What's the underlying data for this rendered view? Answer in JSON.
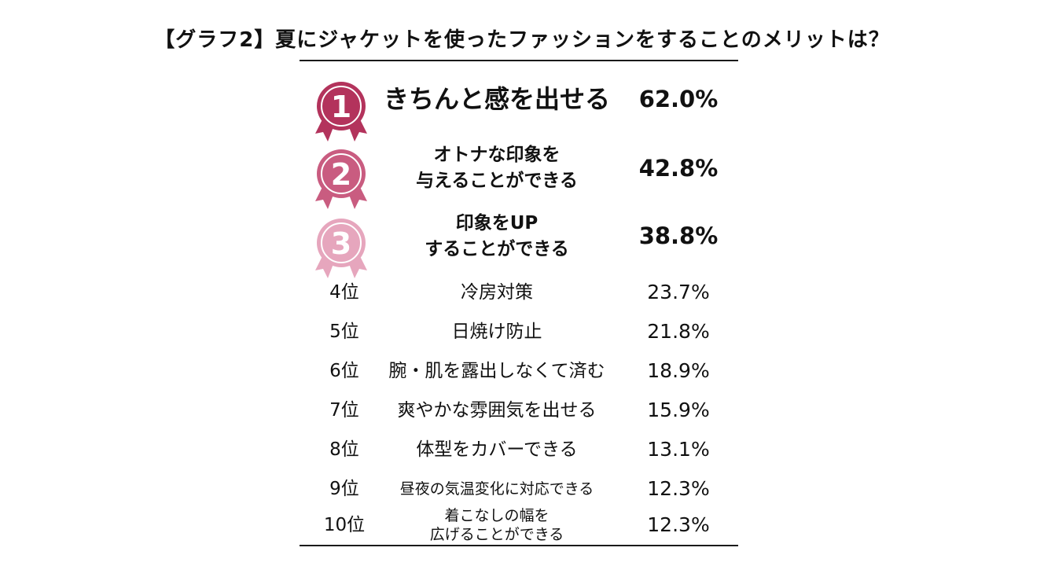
{
  "title": "【グラフ2】夏にジャケットを使ったファッションをすることのメリットは？",
  "colors": {
    "rank1": "#b3335c",
    "rank2": "#c95c80",
    "rank3": "#e6a6bd",
    "rule": "#1a1a1a"
  },
  "chart_data": {
    "type": "table",
    "title": "【グラフ2】夏にジャケットを使ったファッションをすることのメリットは？",
    "columns": [
      "rank",
      "item",
      "percent"
    ],
    "rows": [
      {
        "rank": "1",
        "item_lines": [
          "きちんと感を出せる"
        ],
        "value": "62.0%"
      },
      {
        "rank": "2",
        "item_lines": [
          "オトナな印象を",
          "与えることができる"
        ],
        "value": "42.8%"
      },
      {
        "rank": "3",
        "item_lines": [
          "印象をUP",
          "することができる"
        ],
        "value": "38.8%"
      },
      {
        "rank": "4位",
        "item_lines": [
          "冷房対策"
        ],
        "value": "23.7%"
      },
      {
        "rank": "5位",
        "item_lines": [
          "日焼け防止"
        ],
        "value": "21.8%"
      },
      {
        "rank": "6位",
        "item_lines": [
          "腕・肌を露出しなくて済む"
        ],
        "value": "18.9%"
      },
      {
        "rank": "7位",
        "item_lines": [
          "爽やかな雰囲気を出せる"
        ],
        "value": "15.9%"
      },
      {
        "rank": "8位",
        "item_lines": [
          "体型をカバーできる"
        ],
        "value": "13.1%"
      },
      {
        "rank": "9位",
        "item_lines": [
          "昼夜の気温変化に対応できる"
        ],
        "value": "12.3%"
      },
      {
        "rank": "10位",
        "item_lines": [
          "着こなしの幅を",
          "広げることができる"
        ],
        "value": "12.3%"
      }
    ]
  }
}
